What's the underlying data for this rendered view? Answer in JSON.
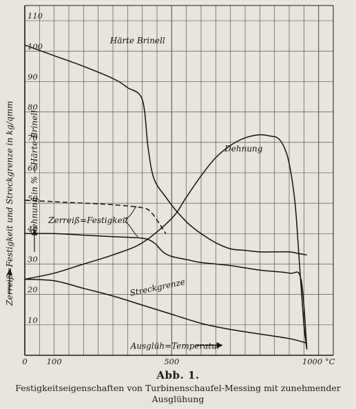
{
  "chart_data": {
    "type": "line",
    "xlim": [
      0,
      1050
    ],
    "ylim": [
      0,
      115
    ],
    "x_ticks": [
      {
        "value": 0,
        "label": "0"
      },
      {
        "value": 100,
        "label": "100"
      },
      {
        "value": 500,
        "label": "500"
      },
      {
        "value": 1000,
        "label": "1000 °C"
      }
    ],
    "y_ticks": [
      10,
      20,
      30,
      40,
      50,
      60,
      70,
      80,
      90,
      100,
      110
    ],
    "ylabel_left": "Zerreiß=Festigkeit und Streckgrenze in kg/qmm",
    "ylabel_inner": "Dehnung in % —Härte Brinell",
    "xlabel": "Ausglüh=Temperatur",
    "grid": true,
    "series": [
      {
        "name": "Härte Brinell",
        "style": "solid",
        "x": [
          0,
          100,
          200,
          300,
          350,
          400,
          420,
          440,
          480,
          520,
          560,
          600,
          650,
          700,
          750,
          800,
          850,
          900,
          930,
          960
        ],
        "y": [
          102,
          98.5,
          95,
          91,
          88,
          84,
          68,
          58,
          52,
          47,
          43,
          40,
          37,
          35,
          34.5,
          34,
          34,
          34,
          33.5,
          33
        ]
      },
      {
        "name": "Dehnung",
        "style": "solid",
        "x": [
          0,
          100,
          200,
          300,
          400,
          500,
          550,
          600,
          650,
          700,
          750,
          800,
          840,
          860,
          880,
          900,
          920,
          935,
          950,
          960
        ],
        "y": [
          25,
          27,
          30,
          33,
          37,
          45,
          52,
          59,
          65,
          69,
          71.5,
          72.5,
          72,
          71.5,
          69,
          63,
          50,
          30,
          10,
          2
        ]
      },
      {
        "name": "Zerreiß=Festigkeit",
        "style": "solid",
        "x": [
          0,
          100,
          200,
          300,
          400,
          440,
          470,
          500,
          550,
          600,
          700,
          800,
          900,
          940,
          960
        ],
        "y": [
          40,
          40,
          39.5,
          39,
          38.5,
          37,
          34,
          32.5,
          31.5,
          30.5,
          29.5,
          28,
          27,
          25,
          2
        ]
      },
      {
        "name": "Zerreiß=Festigkeit (gestrichelt)",
        "style": "dashed",
        "x": [
          0,
          100,
          200,
          300,
          400,
          430,
          460,
          480
        ],
        "y": [
          51,
          50.5,
          50,
          49.5,
          48.5,
          47,
          43,
          40
        ]
      },
      {
        "name": "Streckgrenze",
        "style": "solid",
        "x": [
          0,
          100,
          200,
          300,
          400,
          500,
          600,
          700,
          800,
          900,
          960
        ],
        "y": [
          25,
          24.5,
          22,
          19.5,
          16.5,
          13.5,
          10.5,
          8.5,
          7,
          5.5,
          4
        ]
      }
    ]
  },
  "caption": {
    "title": "Abb. 1.",
    "subtitle": "Festigkeitseigenschaften von Turbinenschaufel-Messing mit zunehmender Ausglühung"
  }
}
